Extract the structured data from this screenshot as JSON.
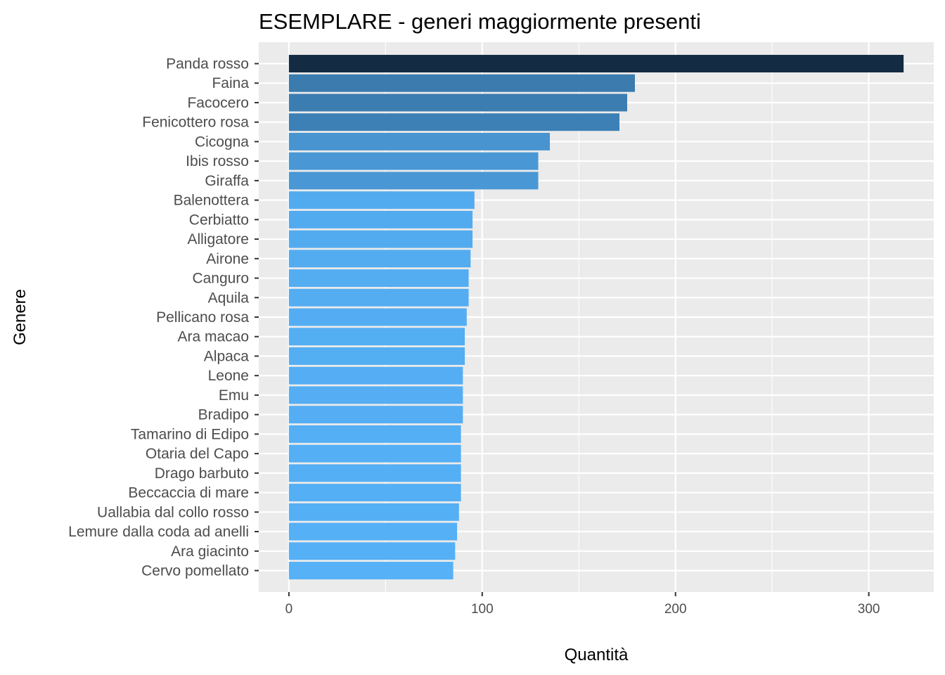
{
  "chart_data": {
    "type": "bar",
    "orientation": "horizontal",
    "title": "ESEMPLARE - generi maggiormente presenti",
    "xlabel": "Quantità",
    "ylabel": "Genere",
    "xlim": [
      -15.6,
      333.6
    ],
    "xticks": [
      0,
      100,
      200,
      300
    ],
    "grid": true,
    "legend": "none",
    "categories": [
      "Panda rosso",
      "Faina",
      "Facocero",
      "Fenicottero rosa",
      "Cicogna",
      "Ibis rosso",
      "Giraffa",
      "Balenottera",
      "Cerbiatto",
      "Alligatore",
      "Airone",
      "Canguro",
      "Aquila",
      "Pellicano rosa",
      "Ara macao",
      "Alpaca",
      "Leone",
      "Emu",
      "Bradipo",
      "Tamarino di Edipo",
      "Otaria del Capo",
      "Drago barbuto",
      "Beccaccia di mare",
      "Uallabia dal collo rosso",
      "Lemure dalla coda ad anelli",
      "Ara giacinto",
      "Cervo pomellato"
    ],
    "values": [
      318,
      179,
      175,
      171,
      135,
      129,
      129,
      96,
      95,
      95,
      94,
      93,
      93,
      92,
      91,
      91,
      90,
      90,
      90,
      89,
      89,
      89,
      89,
      88,
      87,
      86,
      85
    ],
    "color_scale": {
      "low": "#56b1f7",
      "high": "#132b43"
    },
    "panel_background": "#ebebeb",
    "gridline_color": "#ffffff"
  }
}
